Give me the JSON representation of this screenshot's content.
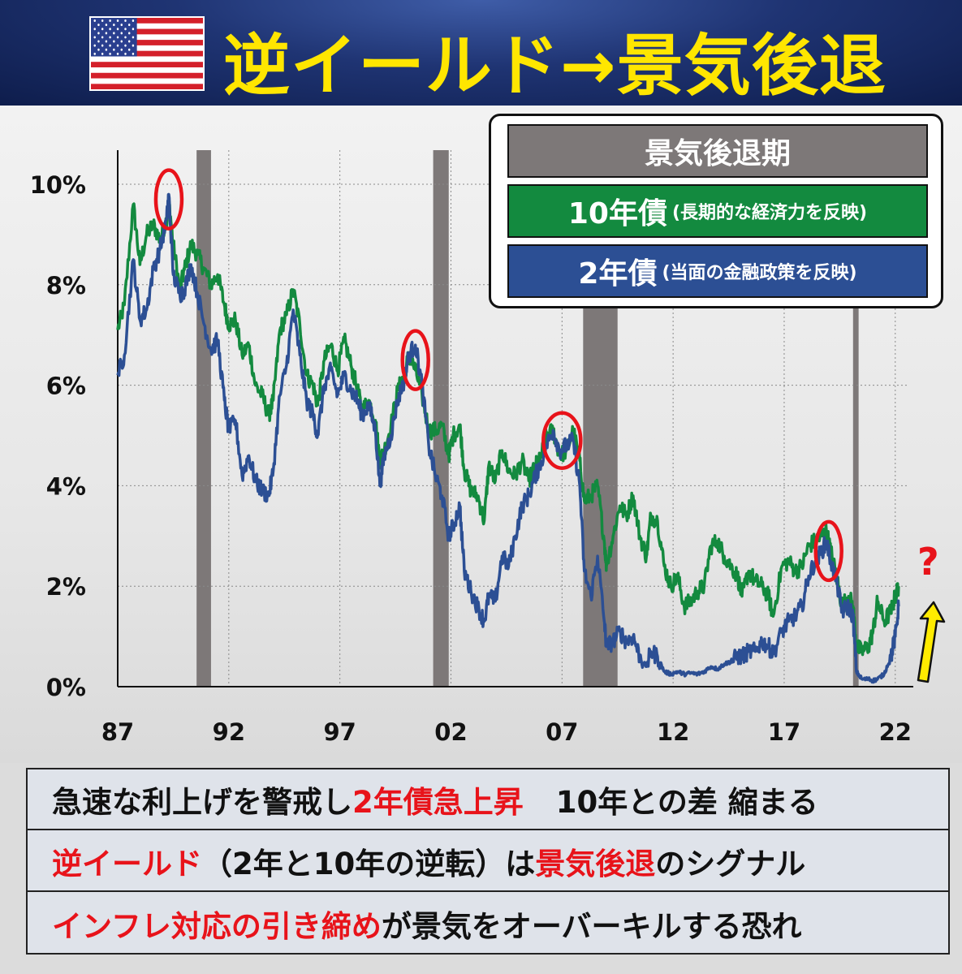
{
  "header": {
    "title": "逆イールド→景気後退",
    "flag_icon": "us-flag-icon",
    "title_color": "#ffe600",
    "background_color": "#1f3473"
  },
  "legend": {
    "recession": "景気後退期",
    "ten_year_main": "10年債",
    "ten_year_note": "(長期的な経済力を反映)",
    "two_year_main": "2年債",
    "two_year_note": "(当面の金融政策を反映)"
  },
  "question_mark": "?",
  "chart_data": {
    "type": "line",
    "x_ticks": [
      "87",
      "92",
      "97",
      "02",
      "07",
      "12",
      "17",
      "22"
    ],
    "y_ticks": [
      "0%",
      "2%",
      "4%",
      "6%",
      "8%",
      "10%"
    ],
    "ylim": [
      0,
      10.5
    ],
    "xlim": [
      1987.0,
      2022.3
    ],
    "grid": true,
    "recessions": [
      [
        1990.55,
        1991.2
      ],
      [
        2001.2,
        2001.9
      ],
      [
        2007.95,
        2009.5
      ],
      [
        2020.1,
        2020.35
      ]
    ],
    "highlight_points": [
      {
        "x": 1989.3,
        "y": 9.7
      },
      {
        "x": 2000.4,
        "y": 6.5
      },
      {
        "x": 2007.0,
        "y": 4.9
      },
      {
        "x": 2019.0,
        "y": 2.7
      }
    ],
    "series": [
      {
        "name": "10年債",
        "color": "#138a3f",
        "points": [
          [
            1987.0,
            7.1
          ],
          [
            1987.3,
            7.6
          ],
          [
            1987.7,
            9.6
          ],
          [
            1988.0,
            8.4
          ],
          [
            1988.3,
            9.0
          ],
          [
            1988.6,
            9.2
          ],
          [
            1988.9,
            8.9
          ],
          [
            1989.2,
            9.3
          ],
          [
            1989.3,
            9.7
          ],
          [
            1989.5,
            8.8
          ],
          [
            1989.8,
            7.9
          ],
          [
            1990.0,
            8.3
          ],
          [
            1990.3,
            8.8
          ],
          [
            1990.6,
            8.6
          ],
          [
            1990.9,
            8.3
          ],
          [
            1991.2,
            8.0
          ],
          [
            1991.5,
            8.2
          ],
          [
            1991.8,
            7.6
          ],
          [
            1992.0,
            7.2
          ],
          [
            1992.3,
            7.3
          ],
          [
            1992.6,
            6.6
          ],
          [
            1992.9,
            6.8
          ],
          [
            1993.2,
            6.0
          ],
          [
            1993.5,
            5.8
          ],
          [
            1993.8,
            5.4
          ],
          [
            1994.0,
            5.7
          ],
          [
            1994.3,
            7.1
          ],
          [
            1994.6,
            7.4
          ],
          [
            1994.9,
            7.9
          ],
          [
            1995.2,
            7.2
          ],
          [
            1995.5,
            6.2
          ],
          [
            1995.8,
            6.0
          ],
          [
            1996.0,
            5.6
          ],
          [
            1996.3,
            6.5
          ],
          [
            1996.6,
            6.8
          ],
          [
            1996.9,
            6.3
          ],
          [
            1997.2,
            6.9
          ],
          [
            1997.5,
            6.4
          ],
          [
            1997.8,
            5.9
          ],
          [
            1998.0,
            5.5
          ],
          [
            1998.3,
            5.7
          ],
          [
            1998.6,
            5.3
          ],
          [
            1998.8,
            4.5
          ],
          [
            1999.0,
            4.7
          ],
          [
            1999.3,
            5.2
          ],
          [
            1999.6,
            5.9
          ],
          [
            1999.9,
            6.2
          ],
          [
            2000.1,
            6.6
          ],
          [
            2000.4,
            6.3
          ],
          [
            2000.7,
            5.8
          ],
          [
            2001.0,
            5.1
          ],
          [
            2001.3,
            5.1
          ],
          [
            2001.6,
            5.2
          ],
          [
            2001.9,
            4.6
          ],
          [
            2002.1,
            5.0
          ],
          [
            2002.4,
            5.2
          ],
          [
            2002.6,
            4.3
          ],
          [
            2002.9,
            3.9
          ],
          [
            2003.2,
            3.8
          ],
          [
            2003.5,
            3.3
          ],
          [
            2003.7,
            4.4
          ],
          [
            2004.0,
            4.1
          ],
          [
            2004.3,
            4.7
          ],
          [
            2004.6,
            4.3
          ],
          [
            2004.9,
            4.2
          ],
          [
            2005.2,
            4.5
          ],
          [
            2005.5,
            4.1
          ],
          [
            2005.8,
            4.4
          ],
          [
            2006.0,
            4.5
          ],
          [
            2006.3,
            5.0
          ],
          [
            2006.6,
            5.1
          ],
          [
            2006.9,
            4.6
          ],
          [
            2007.2,
            4.7
          ],
          [
            2007.5,
            5.1
          ],
          [
            2007.8,
            4.5
          ],
          [
            2008.0,
            3.7
          ],
          [
            2008.3,
            3.8
          ],
          [
            2008.6,
            4.0
          ],
          [
            2008.9,
            2.9
          ],
          [
            2009.0,
            2.4
          ],
          [
            2009.3,
            3.0
          ],
          [
            2009.6,
            3.6
          ],
          [
            2009.9,
            3.4
          ],
          [
            2010.2,
            3.8
          ],
          [
            2010.5,
            3.0
          ],
          [
            2010.8,
            2.6
          ],
          [
            2011.0,
            3.4
          ],
          [
            2011.3,
            3.3
          ],
          [
            2011.6,
            2.4
          ],
          [
            2011.9,
            2.0
          ],
          [
            2012.2,
            2.2
          ],
          [
            2012.5,
            1.6
          ],
          [
            2012.8,
            1.7
          ],
          [
            2013.1,
            1.9
          ],
          [
            2013.4,
            2.0
          ],
          [
            2013.7,
            2.8
          ],
          [
            2014.0,
            2.9
          ],
          [
            2014.3,
            2.6
          ],
          [
            2014.6,
            2.4
          ],
          [
            2014.9,
            2.2
          ],
          [
            2015.1,
            1.8
          ],
          [
            2015.4,
            2.3
          ],
          [
            2015.7,
            2.1
          ],
          [
            2016.0,
            2.0
          ],
          [
            2016.3,
            1.8
          ],
          [
            2016.5,
            1.4
          ],
          [
            2016.9,
            2.4
          ],
          [
            2017.2,
            2.5
          ],
          [
            2017.5,
            2.3
          ],
          [
            2017.8,
            2.4
          ],
          [
            2018.1,
            2.8
          ],
          [
            2018.4,
            2.9
          ],
          [
            2018.7,
            3.0
          ],
          [
            2018.9,
            3.1
          ],
          [
            2019.1,
            2.7
          ],
          [
            2019.4,
            2.1
          ],
          [
            2019.6,
            1.6
          ],
          [
            2019.9,
            1.8
          ],
          [
            2020.1,
            1.6
          ],
          [
            2020.25,
            0.8
          ],
          [
            2020.5,
            0.7
          ],
          [
            2020.8,
            0.8
          ],
          [
            2021.0,
            1.1
          ],
          [
            2021.2,
            1.7
          ],
          [
            2021.5,
            1.3
          ],
          [
            2021.8,
            1.5
          ],
          [
            2022.0,
            1.8
          ],
          [
            2022.15,
            2.0
          ]
        ]
      },
      {
        "name": "2年債",
        "color": "#2c4f94",
        "points": [
          [
            1987.0,
            6.2
          ],
          [
            1987.3,
            6.6
          ],
          [
            1987.7,
            8.5
          ],
          [
            1988.0,
            7.3
          ],
          [
            1988.3,
            7.5
          ],
          [
            1988.6,
            8.3
          ],
          [
            1988.9,
            8.7
          ],
          [
            1989.2,
            9.3
          ],
          [
            1989.3,
            9.8
          ],
          [
            1989.5,
            8.2
          ],
          [
            1989.8,
            7.8
          ],
          [
            1990.0,
            7.9
          ],
          [
            1990.3,
            8.4
          ],
          [
            1990.6,
            7.8
          ],
          [
            1990.9,
            7.2
          ],
          [
            1991.2,
            6.7
          ],
          [
            1991.5,
            6.9
          ],
          [
            1991.8,
            5.7
          ],
          [
            1992.0,
            5.1
          ],
          [
            1992.3,
            5.3
          ],
          [
            1992.6,
            4.2
          ],
          [
            1992.9,
            4.6
          ],
          [
            1993.2,
            4.1
          ],
          [
            1993.5,
            3.9
          ],
          [
            1993.8,
            3.8
          ],
          [
            1994.0,
            4.3
          ],
          [
            1994.3,
            5.8
          ],
          [
            1994.6,
            6.4
          ],
          [
            1994.9,
            7.5
          ],
          [
            1995.2,
            6.6
          ],
          [
            1995.5,
            5.7
          ],
          [
            1995.8,
            5.4
          ],
          [
            1996.0,
            5.0
          ],
          [
            1996.3,
            6.0
          ],
          [
            1996.6,
            6.3
          ],
          [
            1996.9,
            5.8
          ],
          [
            1997.2,
            6.2
          ],
          [
            1997.5,
            5.9
          ],
          [
            1997.8,
            5.7
          ],
          [
            1998.0,
            5.4
          ],
          [
            1998.3,
            5.6
          ],
          [
            1998.6,
            5.1
          ],
          [
            1998.8,
            4.0
          ],
          [
            1999.0,
            4.6
          ],
          [
            1999.3,
            5.0
          ],
          [
            1999.6,
            5.7
          ],
          [
            1999.9,
            6.1
          ],
          [
            2000.1,
            6.6
          ],
          [
            2000.4,
            6.8
          ],
          [
            2000.7,
            6.0
          ],
          [
            2001.0,
            4.8
          ],
          [
            2001.3,
            4.2
          ],
          [
            2001.6,
            3.8
          ],
          [
            2001.9,
            3.0
          ],
          [
            2002.1,
            3.2
          ],
          [
            2002.4,
            3.6
          ],
          [
            2002.6,
            2.3
          ],
          [
            2002.9,
            1.9
          ],
          [
            2003.2,
            1.6
          ],
          [
            2003.5,
            1.3
          ],
          [
            2003.7,
            1.8
          ],
          [
            2004.0,
            1.7
          ],
          [
            2004.3,
            2.6
          ],
          [
            2004.6,
            2.4
          ],
          [
            2004.9,
            3.0
          ],
          [
            2005.2,
            3.6
          ],
          [
            2005.5,
            3.8
          ],
          [
            2005.8,
            4.2
          ],
          [
            2006.0,
            4.4
          ],
          [
            2006.3,
            4.8
          ],
          [
            2006.6,
            5.1
          ],
          [
            2006.9,
            4.7
          ],
          [
            2007.2,
            4.8
          ],
          [
            2007.5,
            4.9
          ],
          [
            2007.8,
            4.0
          ],
          [
            2008.0,
            2.3
          ],
          [
            2008.3,
            1.8
          ],
          [
            2008.6,
            2.6
          ],
          [
            2008.9,
            1.3
          ],
          [
            2009.0,
            0.8
          ],
          [
            2009.3,
            0.9
          ],
          [
            2009.6,
            1.1
          ],
          [
            2009.9,
            0.9
          ],
          [
            2010.2,
            1.0
          ],
          [
            2010.5,
            0.6
          ],
          [
            2010.8,
            0.4
          ],
          [
            2011.0,
            0.7
          ],
          [
            2011.3,
            0.6
          ],
          [
            2011.6,
            0.3
          ],
          [
            2011.9,
            0.25
          ],
          [
            2012.2,
            0.3
          ],
          [
            2012.5,
            0.25
          ],
          [
            2012.8,
            0.27
          ],
          [
            2013.1,
            0.25
          ],
          [
            2013.4,
            0.3
          ],
          [
            2013.7,
            0.4
          ],
          [
            2014.0,
            0.35
          ],
          [
            2014.3,
            0.45
          ],
          [
            2014.6,
            0.5
          ],
          [
            2014.9,
            0.6
          ],
          [
            2015.1,
            0.6
          ],
          [
            2015.4,
            0.7
          ],
          [
            2015.7,
            0.7
          ],
          [
            2016.0,
            0.9
          ],
          [
            2016.3,
            0.8
          ],
          [
            2016.5,
            0.65
          ],
          [
            2016.9,
            1.1
          ],
          [
            2017.2,
            1.3
          ],
          [
            2017.5,
            1.4
          ],
          [
            2017.8,
            1.6
          ],
          [
            2018.1,
            2.2
          ],
          [
            2018.4,
            2.5
          ],
          [
            2018.7,
            2.7
          ],
          [
            2018.9,
            2.9
          ],
          [
            2019.1,
            2.5
          ],
          [
            2019.4,
            2.0
          ],
          [
            2019.6,
            1.5
          ],
          [
            2019.9,
            1.6
          ],
          [
            2020.1,
            1.4
          ],
          [
            2020.25,
            0.3
          ],
          [
            2020.5,
            0.15
          ],
          [
            2020.8,
            0.15
          ],
          [
            2021.0,
            0.12
          ],
          [
            2021.2,
            0.15
          ],
          [
            2021.5,
            0.25
          ],
          [
            2021.8,
            0.6
          ],
          [
            2022.0,
            1.0
          ],
          [
            2022.15,
            1.6
          ]
        ]
      }
    ]
  },
  "bottom": {
    "line1_a": "急速な利上げを警戒し",
    "line1_b": "2年債急上昇",
    "line1_c": "10年との差 縮まる",
    "line2_a": "逆イールド",
    "line2_b": "（2年と10年の逆転）は",
    "line2_c": "景気後退",
    "line2_d": "のシグナル",
    "line3_a": "インフレ対応の引き締め",
    "line3_b": "が景気をオーバーキルする恐れ",
    "accent_color": "#e8131a"
  }
}
